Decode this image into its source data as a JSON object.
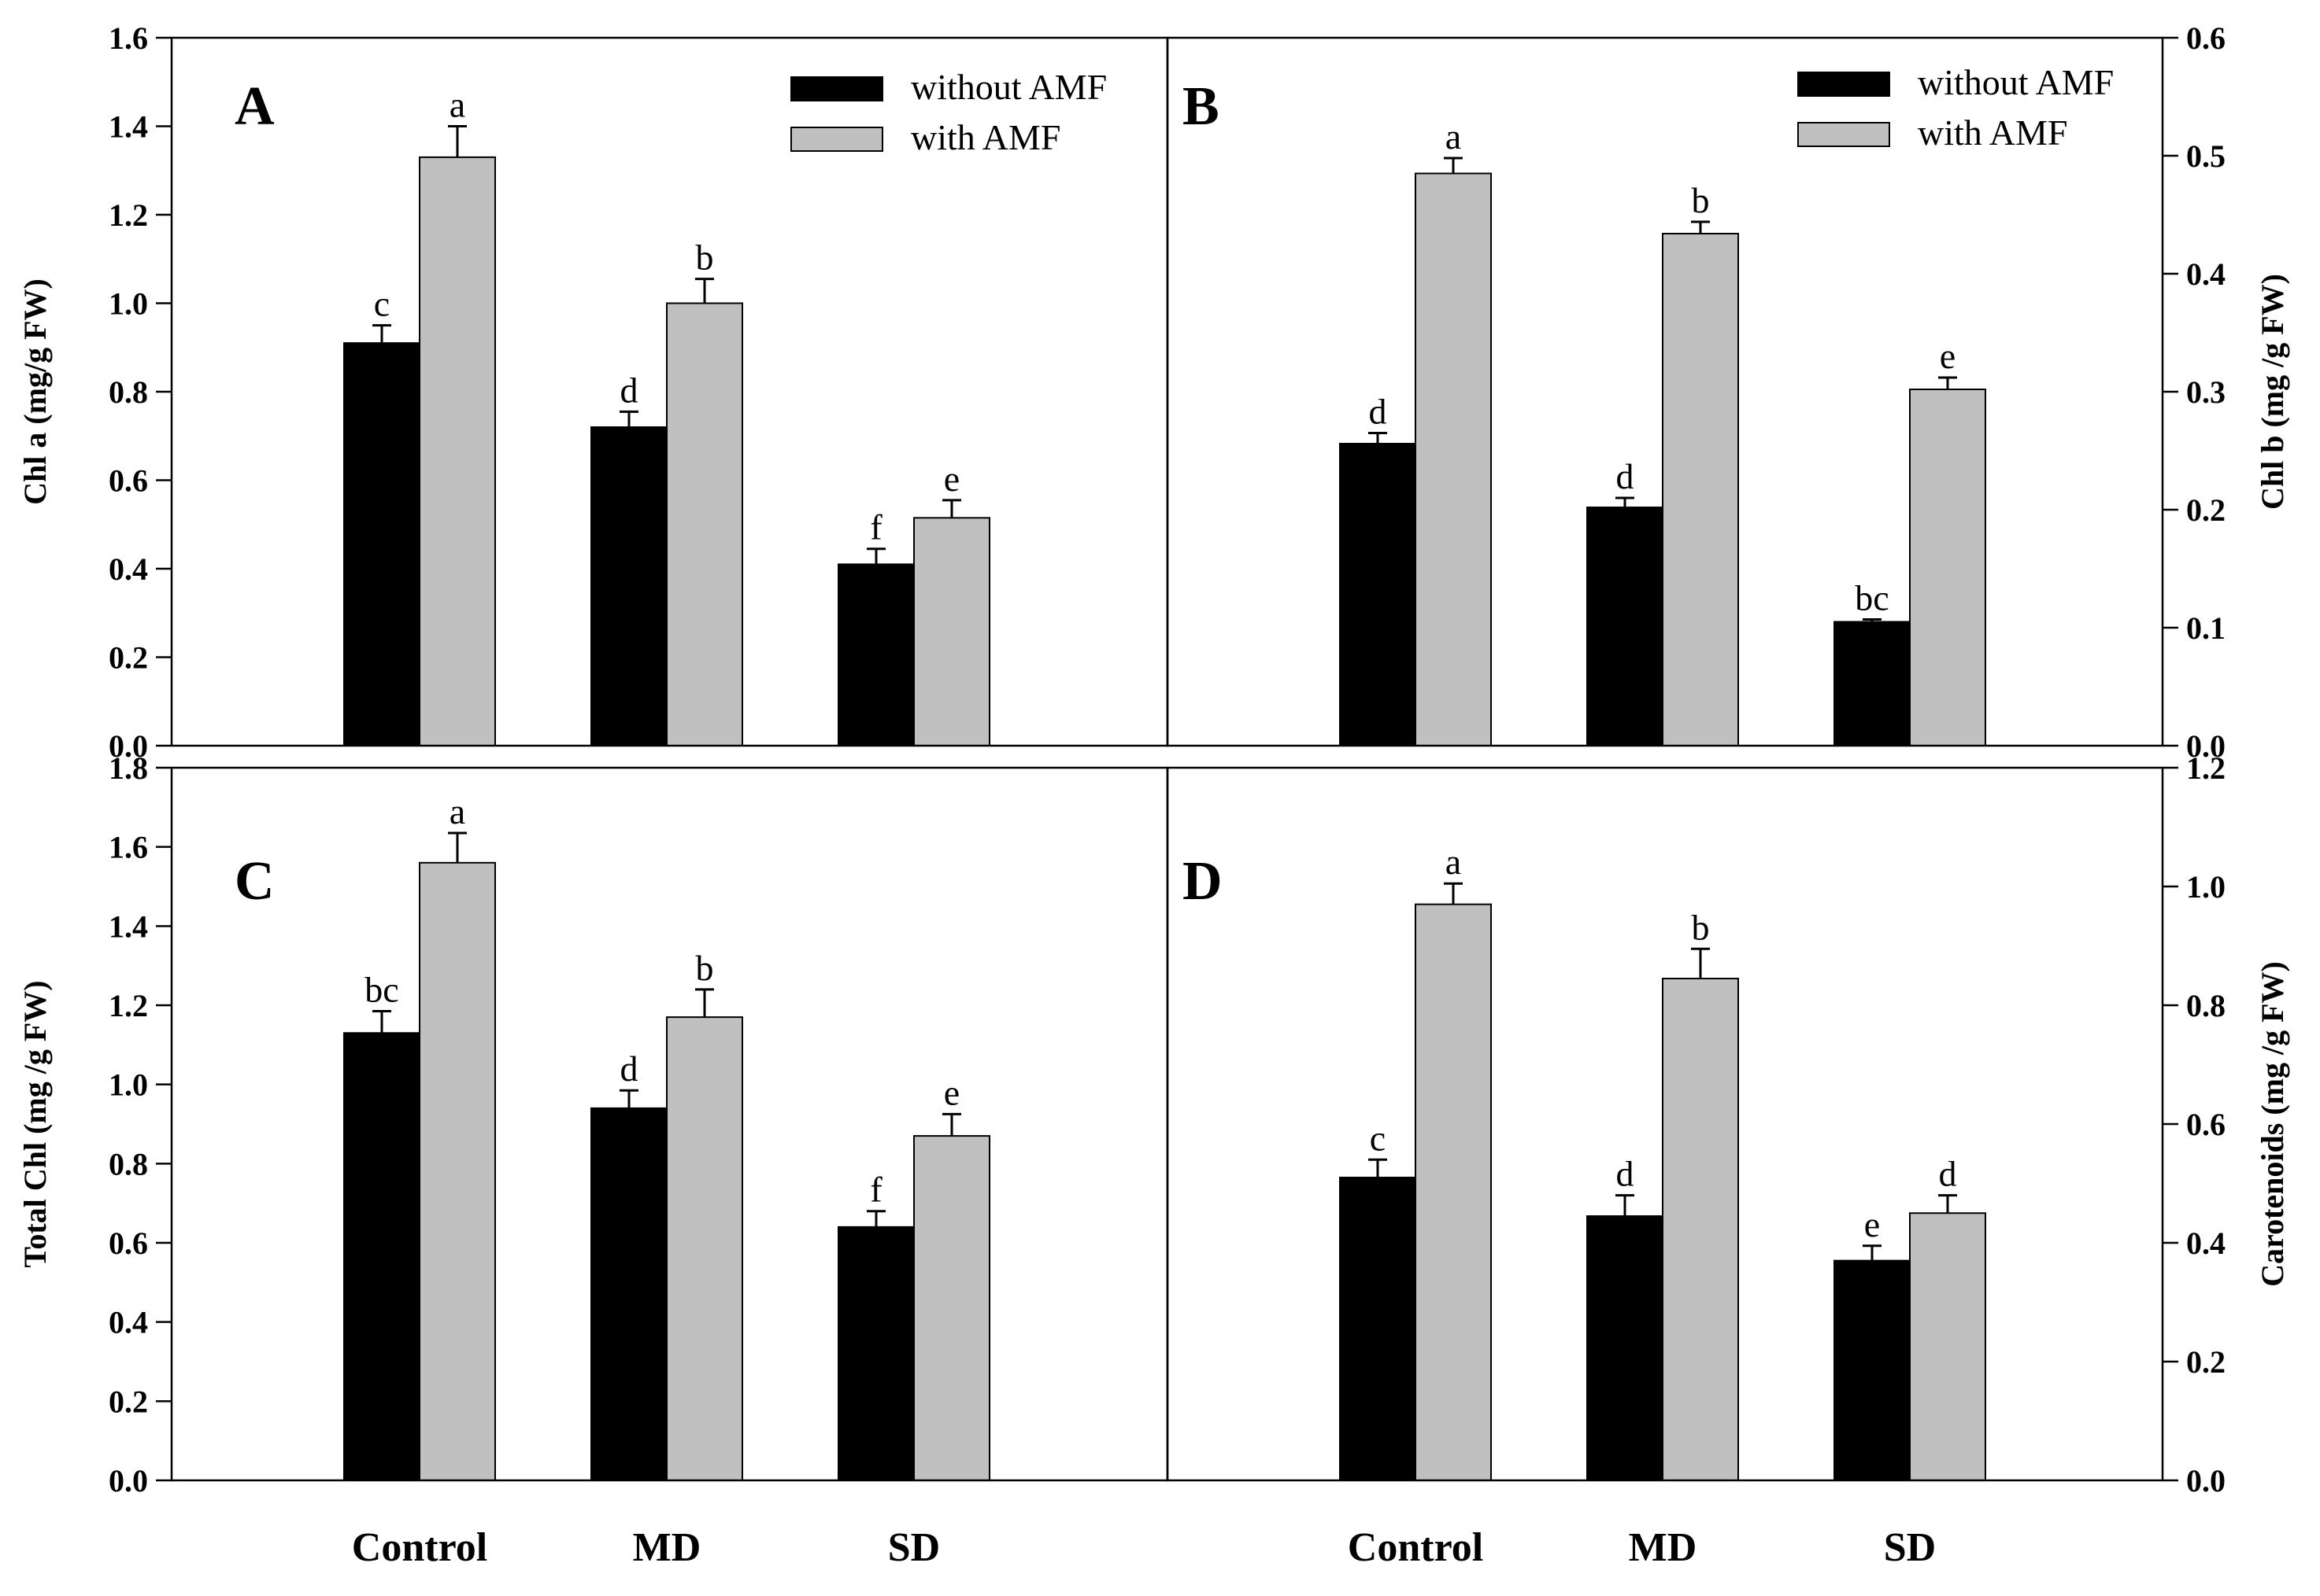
{
  "legend": {
    "without_label": "without AMF",
    "with_label": "with AMF",
    "without_color": "#000000",
    "with_color": "#c0c0c0"
  },
  "x_categories": [
    "Control",
    "MD",
    "SD"
  ],
  "chart_data": [
    {
      "type": "bar",
      "panel": "A",
      "ylabel": "Chl a (mg/g FW)",
      "categories": [
        "Control",
        "MD",
        "SD"
      ],
      "ylim": [
        0,
        1.6
      ],
      "yticks": [
        "0.0",
        "0.2",
        "0.4",
        "0.6",
        "0.8",
        "1.0",
        "1.2",
        "1.4",
        "1.6"
      ],
      "series": [
        {
          "name": "without AMF",
          "values": [
            0.91,
            0.72,
            0.41
          ],
          "errors": [
            0.04,
            0.035,
            0.035
          ],
          "letters": [
            "c",
            "d",
            "f"
          ]
        },
        {
          "name": "with AMF",
          "values": [
            1.33,
            1.0,
            0.515
          ],
          "errors": [
            0.07,
            0.055,
            0.04
          ],
          "letters": [
            "a",
            "b",
            "e"
          ]
        }
      ],
      "legend": "top-right"
    },
    {
      "type": "bar",
      "panel": "B",
      "ylabel": "Chl b (mg /g FW)",
      "categories": [
        "Control",
        "MD",
        "SD"
      ],
      "ylim": [
        0,
        0.6
      ],
      "yticks": [
        "0.0",
        "0.1",
        "0.2",
        "0.3",
        "0.4",
        "0.5",
        "0.6"
      ],
      "series": [
        {
          "name": "without AMF",
          "values": [
            0.256,
            0.202,
            0.105
          ],
          "errors": [
            0.009,
            0.008,
            0.002
          ],
          "letters": [
            "d",
            "d",
            "bc"
          ]
        },
        {
          "name": "with AMF",
          "values": [
            0.485,
            0.434,
            0.302
          ],
          "errors": [
            0.013,
            0.01,
            0.01
          ],
          "letters": [
            "a",
            "b",
            "e"
          ]
        }
      ],
      "legend": "top-right"
    },
    {
      "type": "bar",
      "panel": "C",
      "ylabel": "Total Chl (mg /g FW)",
      "categories": [
        "Control",
        "MD",
        "SD"
      ],
      "ylim": [
        0,
        1.8
      ],
      "yticks": [
        "0.0",
        "0.2",
        "0.4",
        "0.6",
        "0.8",
        "1.0",
        "1.2",
        "1.4",
        "1.6",
        "1.8"
      ],
      "series": [
        {
          "name": "without AMF",
          "values": [
            1.13,
            0.94,
            0.64
          ],
          "errors": [
            0.055,
            0.045,
            0.04
          ],
          "letters": [
            "bc",
            "d",
            "f"
          ]
        },
        {
          "name": "with AMF",
          "values": [
            1.56,
            1.17,
            0.87
          ],
          "errors": [
            0.075,
            0.07,
            0.055
          ],
          "letters": [
            "a",
            "b",
            "e"
          ]
        }
      ]
    },
    {
      "type": "bar",
      "panel": "D",
      "ylabel": "Carotenoids (mg /g FW)",
      "categories": [
        "Control",
        "MD",
        "SD"
      ],
      "ylim": [
        0,
        1.2
      ],
      "yticks": [
        "0.0",
        "0.2",
        "0.4",
        "0.6",
        "0.8",
        "1.0",
        "1.2"
      ],
      "series": [
        {
          "name": "without AMF",
          "values": [
            0.51,
            0.445,
            0.37
          ],
          "errors": [
            0.03,
            0.035,
            0.025
          ],
          "letters": [
            "c",
            "d",
            "e"
          ]
        },
        {
          "name": "with AMF",
          "values": [
            0.97,
            0.845,
            0.45
          ],
          "errors": [
            0.035,
            0.05,
            0.03
          ],
          "letters": [
            "a",
            "b",
            "d"
          ]
        }
      ]
    }
  ]
}
